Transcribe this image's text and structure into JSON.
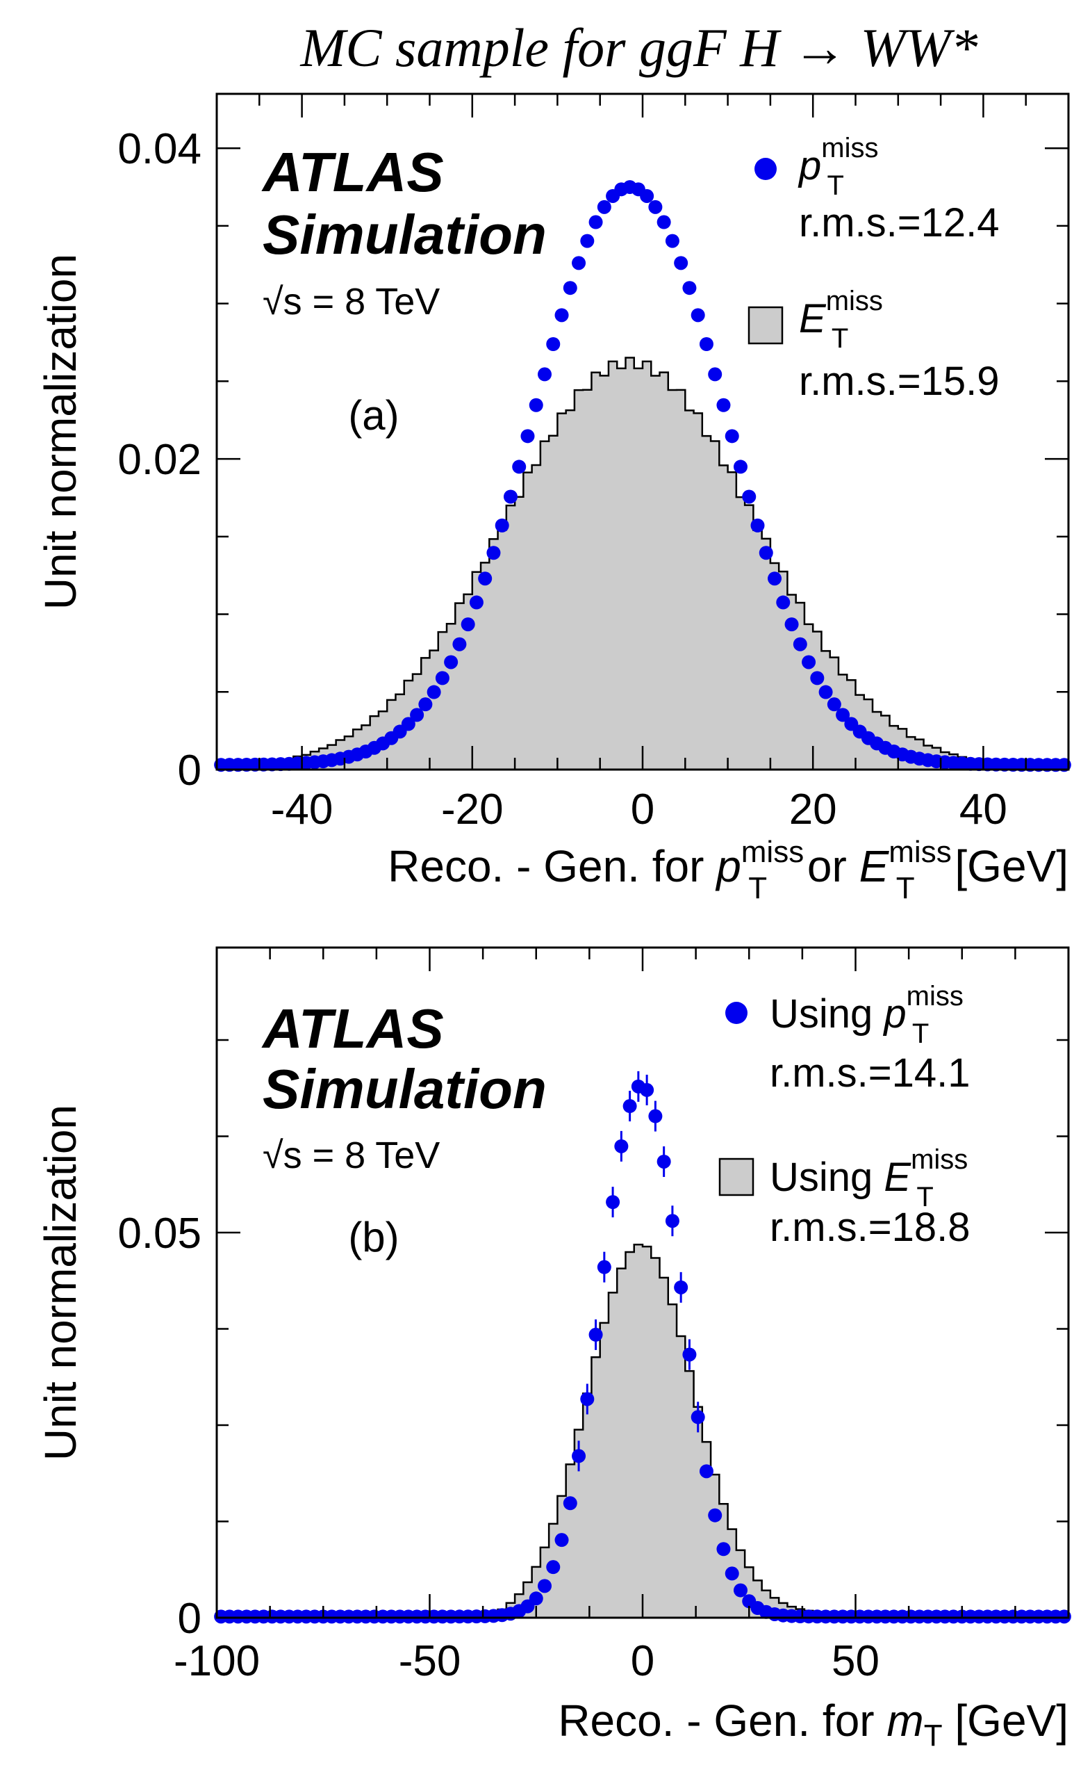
{
  "figure_title": "MC sample for ggF H → WW*",
  "colors": {
    "points": "#0000ee",
    "hist_fill": "#cccccc",
    "hist_line": "#000000"
  },
  "chart_data": [
    {
      "type": "bar",
      "panel_label": "(a)",
      "experiment": "ATLAS",
      "experiment_sub": "Simulation",
      "energy_note": "√s = 8 TeV",
      "xlabel": {
        "prefix": "Reco. - Gen. for ",
        "var1": "p",
        "sub1": "T",
        "sup1": "miss",
        "mid": " or ",
        "var2": "E",
        "sub2": "T",
        "sup2": "miss",
        "suffix": " [GeV]"
      },
      "ylabel": "Unit normalization",
      "xlim": [
        -50,
        50
      ],
      "ylim": [
        0,
        0.0435
      ],
      "x_ticks": [
        -40,
        -20,
        0,
        20,
        40
      ],
      "x_tick_labels": [
        "-40",
        "-20",
        "0",
        "20",
        "40"
      ],
      "y_ticks": [
        0,
        0.02,
        0.04
      ],
      "y_tick_labels": [
        "0",
        "0.02",
        "0.04"
      ],
      "grid": false,
      "legend_position": "top-right",
      "series": [
        {
          "name": "p_T^miss",
          "legend": {
            "var": "p",
            "sub": "T",
            "sup": "miss",
            "prefix": "",
            "rms": "r.m.s.=12.4"
          },
          "kind": "points",
          "sigma": 11.3,
          "amplitude": 0.0372,
          "bin_width": 1,
          "x": [
            -49.5,
            -47.5,
            -45.5,
            -43.5,
            -41.5,
            -39.5,
            -37.5,
            -35.5,
            -33.5,
            -31.5,
            -29.5,
            -27.5,
            -25.5,
            -23.5,
            -21.5,
            -19.5,
            -17.5,
            -15.5,
            -13.5,
            -11.5,
            -9.5,
            -7.5,
            -5.5,
            -3.5,
            -1.5,
            0.5,
            2.5,
            4.5,
            6.5,
            8.5,
            10.5,
            12.5,
            14.5,
            16.5,
            18.5,
            20.5,
            22.5,
            24.5,
            26.5,
            28.5,
            30.5,
            32.5,
            34.5,
            36.5,
            38.5,
            40.5,
            42.5,
            44.5,
            46.5,
            48.5
          ],
          "values": [
            0.0003,
            0.0004,
            0.0005,
            0.0006,
            0.0007,
            0.0009,
            0.0012,
            0.0015,
            0.0019,
            0.0024,
            0.003,
            0.0037,
            0.0045,
            0.0056,
            0.007,
            0.0087,
            0.0109,
            0.0136,
            0.0168,
            0.0205,
            0.0247,
            0.0291,
            0.033,
            0.036,
            0.0372,
            0.0368,
            0.0347,
            0.0313,
            0.0271,
            0.0227,
            0.0184,
            0.0146,
            0.0113,
            0.0086,
            0.0065,
            0.0049,
            0.0037,
            0.0028,
            0.0022,
            0.0017,
            0.0013,
            0.001,
            0.0008,
            0.0006,
            0.0005,
            0.0004,
            0.0003,
            0.0003,
            0.0002,
            0.0002
          ]
        },
        {
          "name": "E_T^miss",
          "legend": {
            "var": "E",
            "sub": "T",
            "sup": "miss",
            "prefix": "",
            "rms": "r.m.s.=15.9"
          },
          "kind": "histogram",
          "sigma": 14.8,
          "amplitude": 0.0262,
          "bin_width": 1,
          "x": [
            -49.5,
            -47.5,
            -45.5,
            -43.5,
            -41.5,
            -39.5,
            -37.5,
            -35.5,
            -33.5,
            -31.5,
            -29.5,
            -27.5,
            -25.5,
            -23.5,
            -21.5,
            -19.5,
            -17.5,
            -15.5,
            -13.5,
            -11.5,
            -9.5,
            -7.5,
            -5.5,
            -3.5,
            -1.5,
            0.5,
            2.5,
            4.5,
            6.5,
            8.5,
            10.5,
            12.5,
            14.5,
            16.5,
            18.5,
            20.5,
            22.5,
            24.5,
            26.5,
            28.5,
            30.5,
            32.5,
            34.5,
            36.5,
            38.5,
            40.5,
            42.5,
            44.5,
            46.5,
            48.5
          ],
          "values": [
            0.0009,
            0.0011,
            0.0013,
            0.0016,
            0.002,
            0.0025,
            0.003,
            0.0037,
            0.0045,
            0.0054,
            0.0065,
            0.0078,
            0.0093,
            0.011,
            0.0129,
            0.015,
            0.0171,
            0.0193,
            0.0214,
            0.0233,
            0.0248,
            0.0258,
            0.0262,
            0.0259,
            0.0251,
            0.0238,
            0.0221,
            0.0201,
            0.018,
            0.0159,
            0.0138,
            0.0119,
            0.0101,
            0.0085,
            0.0071,
            0.0059,
            0.0048,
            0.0039,
            0.0032,
            0.0026,
            0.0021,
            0.0017,
            0.0013,
            0.0011,
            0.0009,
            0.0007,
            0.0006,
            0.0005,
            0.0004,
            0.0003
          ]
        }
      ]
    },
    {
      "type": "bar",
      "panel_label": "(b)",
      "experiment": "ATLAS",
      "experiment_sub": "Simulation",
      "energy_note": "√s = 8 TeV",
      "xlabel": {
        "prefix": "Reco. - Gen. for ",
        "var1": "m",
        "sub1": "T",
        "suffix": " [GeV]"
      },
      "ylabel": "Unit normalization",
      "xlim": [
        -100,
        100
      ],
      "ylim": [
        0,
        0.087
      ],
      "x_ticks": [
        -100,
        -50,
        0,
        50
      ],
      "x_tick_labels": [
        "-100",
        "-50",
        "0",
        "50"
      ],
      "y_ticks": [
        0,
        0.05
      ],
      "y_tick_labels": [
        "0",
        "0.05"
      ],
      "grid": false,
      "legend_position": "top-right",
      "series": [
        {
          "name": "Using p_T^miss",
          "legend": {
            "var": "p",
            "sub": "T",
            "sup": "miss",
            "prefix": "Using ",
            "rms": "r.m.s.=14.1"
          },
          "kind": "points",
          "sigma": 9.5,
          "amplitude": 0.069,
          "bin_width": 2,
          "x": [
            -98,
            -94,
            -90,
            -86,
            -82,
            -78,
            -74,
            -70,
            -66,
            -62,
            -58,
            -54,
            -50,
            -46,
            -42,
            -38,
            -34,
            -30,
            -26,
            -22,
            -18,
            -14,
            -10,
            -6,
            -2,
            2,
            6,
            10,
            14,
            18,
            22,
            26,
            30,
            34,
            38,
            42,
            46,
            50,
            54,
            58,
            62,
            66,
            70,
            74,
            78,
            82,
            86,
            90,
            94,
            98
          ],
          "values": [
            0.0002,
            0.0002,
            0.0002,
            0.0002,
            0.0002,
            0.0002,
            0.0002,
            0.0002,
            0.0002,
            0.0002,
            0.0002,
            0.0002,
            0.0003,
            0.0004,
            0.0006,
            0.0009,
            0.0016,
            0.003,
            0.006,
            0.0118,
            0.0215,
            0.035,
            0.052,
            0.066,
            0.069,
            0.061,
            0.047,
            0.033,
            0.0222,
            0.0145,
            0.0093,
            0.0059,
            0.0038,
            0.0025,
            0.0016,
            0.0011,
            0.0008,
            0.0006,
            0.0005,
            0.0004,
            0.0003,
            0.0003,
            0.0002,
            0.0002,
            0.0002,
            0.0002,
            0.0002,
            0.0002,
            0.0002,
            0.0002
          ]
        },
        {
          "name": "Using E_T^miss",
          "legend": {
            "var": "E",
            "sub": "T",
            "sup": "miss",
            "prefix": "Using ",
            "rms": "r.m.s.=18.8"
          },
          "kind": "histogram",
          "sigma": 12.5,
          "amplitude": 0.0485,
          "bin_width": 2,
          "x": [
            -98,
            -94,
            -90,
            -86,
            -82,
            -78,
            -74,
            -70,
            -66,
            -62,
            -58,
            -54,
            -50,
            -46,
            -42,
            -38,
            -34,
            -30,
            -26,
            -22,
            -18,
            -14,
            -10,
            -6,
            -2,
            2,
            6,
            10,
            14,
            18,
            22,
            26,
            30,
            34,
            38,
            42,
            46,
            50,
            54,
            58,
            62,
            66,
            70,
            74,
            78,
            82,
            86,
            90,
            94,
            98
          ],
          "values": [
            0.0002,
            0.0002,
            0.0002,
            0.0002,
            0.0003,
            0.0003,
            0.0004,
            0.0005,
            0.0007,
            0.0009,
            0.0012,
            0.0016,
            0.0021,
            0.0028,
            0.0038,
            0.0052,
            0.0072,
            0.01,
            0.0138,
            0.0188,
            0.0248,
            0.032,
            0.0395,
            0.0455,
            0.0485,
            0.047,
            0.0418,
            0.0348,
            0.0275,
            0.0208,
            0.0152,
            0.0108,
            0.0076,
            0.0053,
            0.0037,
            0.0026,
            0.0019,
            0.0014,
            0.001,
            0.0008,
            0.0006,
            0.0005,
            0.0004,
            0.0003,
            0.0003,
            0.0002,
            0.0002,
            0.0002,
            0.0002,
            0.0002
          ]
        }
      ]
    }
  ]
}
